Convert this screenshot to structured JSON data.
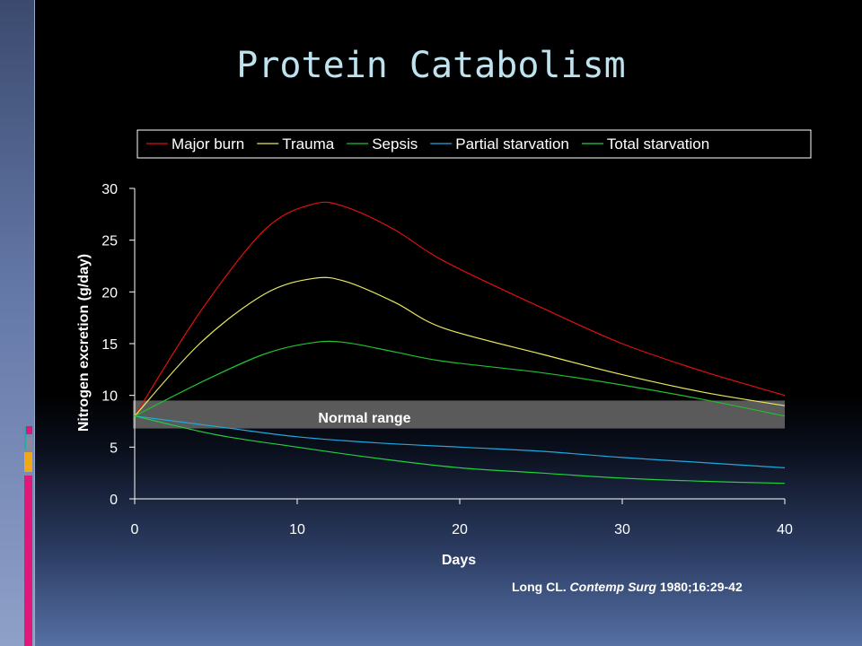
{
  "slide": {
    "title": "Protein Catabolism",
    "citation": {
      "author": "Long CL. ",
      "journal": "Contemp Surg",
      "details": " 1980;16:29-42"
    },
    "colors": {
      "background": "#000000",
      "title": "#bfe3ee",
      "sidebar": "#5a6e9e",
      "accent_pink": "#e0187a",
      "accent_orange": "#f0a818",
      "accent_teal": "#2aa8a8"
    }
  },
  "chart_data": {
    "type": "line",
    "xlabel": "Days",
    "ylabel": "Nitrogen excretion (g/day)",
    "xlim": [
      0,
      40
    ],
    "ylim": [
      0,
      30
    ],
    "xticks": [
      0,
      10,
      20,
      30,
      40
    ],
    "yticks": [
      0,
      5,
      10,
      15,
      20,
      25,
      30
    ],
    "grid": false,
    "legend_position": "top",
    "band": {
      "label": "Normal range",
      "y_range": [
        6.8,
        9.5
      ],
      "color": "#5a5a5a"
    },
    "series": [
      {
        "name": "Major burn",
        "color": "#e01010",
        "points": [
          [
            0,
            8
          ],
          [
            4,
            18
          ],
          [
            8,
            26
          ],
          [
            11,
            28.5
          ],
          [
            13,
            28.2
          ],
          [
            16,
            26
          ],
          [
            19,
            23
          ],
          [
            25,
            18.5
          ],
          [
            30,
            15
          ],
          [
            35,
            12.3
          ],
          [
            40,
            10
          ]
        ]
      },
      {
        "name": "Trauma",
        "color": "#e8e860",
        "points": [
          [
            0,
            8
          ],
          [
            4,
            15
          ],
          [
            8,
            19.8
          ],
          [
            11,
            21.3
          ],
          [
            13,
            21
          ],
          [
            16,
            19
          ],
          [
            19,
            16.5
          ],
          [
            25,
            14
          ],
          [
            30,
            12
          ],
          [
            35,
            10.3
          ],
          [
            40,
            9
          ]
        ]
      },
      {
        "name": "Sepsis",
        "color": "#20c030",
        "points": [
          [
            0,
            8
          ],
          [
            4,
            11.2
          ],
          [
            8,
            14
          ],
          [
            11,
            15.1
          ],
          [
            13,
            15.1
          ],
          [
            16,
            14.2
          ],
          [
            19,
            13.3
          ],
          [
            25,
            12.2
          ],
          [
            30,
            11
          ],
          [
            35,
            9.6
          ],
          [
            40,
            8
          ]
        ]
      },
      {
        "name": "Partial starvation",
        "color": "#20a8e0",
        "points": [
          [
            0,
            8
          ],
          [
            5,
            7
          ],
          [
            10,
            6
          ],
          [
            15,
            5.4
          ],
          [
            20,
            5
          ],
          [
            25,
            4.6
          ],
          [
            30,
            4
          ],
          [
            35,
            3.5
          ],
          [
            40,
            3
          ]
        ]
      },
      {
        "name": "Total starvation",
        "color": "#20d040",
        "points": [
          [
            0,
            8
          ],
          [
            5,
            6.2
          ],
          [
            10,
            5
          ],
          [
            15,
            3.9
          ],
          [
            20,
            3
          ],
          [
            25,
            2.5
          ],
          [
            30,
            2
          ],
          [
            35,
            1.7
          ],
          [
            40,
            1.5
          ]
        ]
      }
    ]
  }
}
